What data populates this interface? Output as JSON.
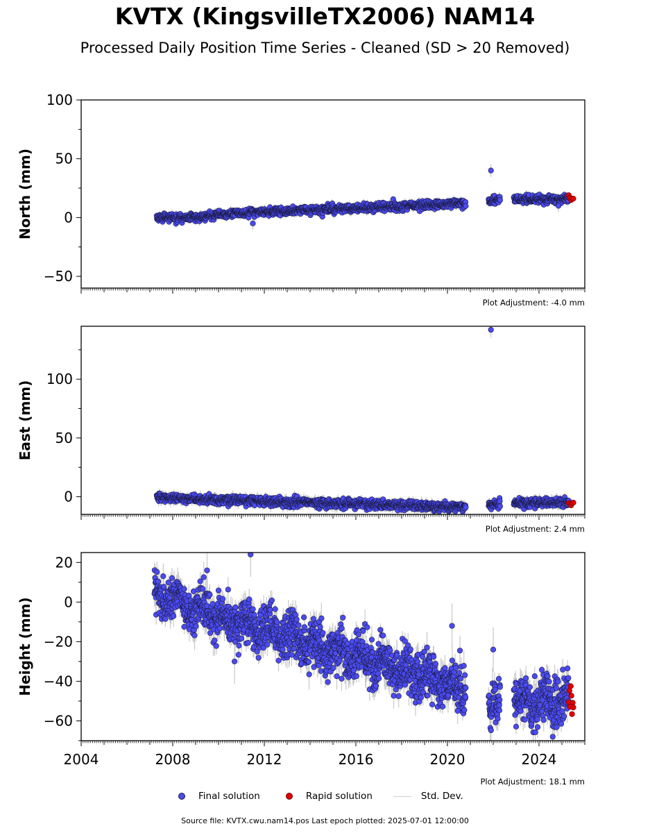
{
  "title": "KVTX (KingsvilleTX2006) NAM14",
  "subtitle": "Processed Daily Position Time Series - Cleaned (SD > 20 Removed)",
  "legend": {
    "final_label": "Final solution",
    "rapid_label": "Rapid solution",
    "stddev_label": "Std. Dev."
  },
  "footer": "Source file: KVTX.cwu.nam14.pos  Last epoch plotted: 2025-07-01 12:00:00",
  "colors": {
    "final": "#4b4bf2",
    "rapid": "#e00000",
    "stddev": "#c8c8c8",
    "edge": "#1a1a40"
  },
  "chart_data": [
    {
      "type": "scatter",
      "component": "north",
      "ylabel": "North (mm)",
      "adjustment": "Plot Adjustment: -4.0 mm",
      "xlim": [
        2004,
        2026
      ],
      "ylim": [
        -60,
        100
      ],
      "yticks": [
        -50,
        0,
        50,
        100
      ],
      "ytick_labels": [
        "−50",
        "0",
        "50",
        "100"
      ],
      "segments": [
        {
          "x0": 2007.3,
          "x1": 2009.0,
          "y0": 0,
          "y1": 0,
          "noise": 1.5
        },
        {
          "x0": 2009.0,
          "x1": 2010.0,
          "y0": 0,
          "y1": 3,
          "noise": 1.5
        },
        {
          "x0": 2010.0,
          "x1": 2020.8,
          "y0": 3,
          "y1": 12,
          "noise": 1.6
        },
        {
          "x0": 2021.8,
          "x1": 2022.3,
          "y0": 14,
          "y1": 15,
          "noise": 1.6
        },
        {
          "x0": 2022.9,
          "x1": 2025.3,
          "y0": 15,
          "y1": 16,
          "noise": 1.6
        }
      ],
      "outliers": [
        {
          "x": 2021.9,
          "y": 40
        },
        {
          "x": 2024.85,
          "y": 10
        },
        {
          "x": 2011.5,
          "y": -5
        }
      ],
      "rapid": {
        "x0": 2025.3,
        "x1": 2025.5,
        "y": 16,
        "noise": 1.5,
        "n": 5
      },
      "std_range": [
        1,
        4
      ],
      "n_per_year": 90
    },
    {
      "type": "scatter",
      "component": "east",
      "ylabel": "East (mm)",
      "adjustment": "Plot Adjustment: 2.4 mm",
      "xlim": [
        2004,
        2026
      ],
      "ylim": [
        -15,
        145
      ],
      "yticks": [
        0,
        50,
        100
      ],
      "ytick_labels": [
        "0",
        "50",
        "100"
      ],
      "segments": [
        {
          "x0": 2007.3,
          "x1": 2009.0,
          "y0": 0,
          "y1": -1.5,
          "noise": 1.6
        },
        {
          "x0": 2009.0,
          "x1": 2020.8,
          "y0": -2,
          "y1": -9,
          "noise": 1.8
        },
        {
          "x0": 2021.8,
          "x1": 2022.3,
          "y0": -7,
          "y1": -6,
          "noise": 1.8
        },
        {
          "x0": 2022.9,
          "x1": 2025.3,
          "y0": -5,
          "y1": -5,
          "noise": 1.7
        }
      ],
      "outliers": [
        {
          "x": 2021.9,
          "y": 142
        }
      ],
      "rapid": {
        "x0": 2025.3,
        "x1": 2025.5,
        "y": -6,
        "noise": 1,
        "n": 5
      },
      "std_range": [
        1,
        5
      ],
      "n_per_year": 90
    },
    {
      "type": "scatter",
      "component": "height",
      "ylabel": "Height (mm)",
      "adjustment": "Plot Adjustment: 18.1 mm",
      "xlim": [
        2004,
        2026
      ],
      "ylim": [
        -70,
        25
      ],
      "yticks": [
        -60,
        -40,
        -20,
        0,
        20
      ],
      "ytick_labels": [
        "−60",
        "−40",
        "−20",
        "0",
        "20"
      ],
      "xticks": [
        2004,
        2008,
        2012,
        2016,
        2020,
        2024
      ],
      "segments": [
        {
          "x0": 2007.2,
          "x1": 2008.5,
          "y0": 3,
          "y1": 2,
          "noise": 5.5
        },
        {
          "x0": 2008.5,
          "x1": 2020.8,
          "y0": -2,
          "y1": -44,
          "noise": 5.5
        },
        {
          "x0": 2021.8,
          "x1": 2022.3,
          "y0": -50,
          "y1": -51,
          "noise": 6
        },
        {
          "x0": 2022.9,
          "x1": 2025.3,
          "y0": -50,
          "y1": -50,
          "noise": 6
        }
      ],
      "outliers": [
        {
          "x": 2011.4,
          "y": 24
        },
        {
          "x": 2010.7,
          "y": -30
        },
        {
          "x": 2020.2,
          "y": -12
        },
        {
          "x": 2022.0,
          "y": -24
        },
        {
          "x": 2024.6,
          "y": -68
        },
        {
          "x": 2009.5,
          "y": 16
        }
      ],
      "rapid": {
        "x0": 2025.3,
        "x1": 2025.5,
        "y": -50,
        "noise": 6,
        "n": 8
      },
      "std_range": [
        2,
        8
      ],
      "n_per_year": 110
    }
  ]
}
